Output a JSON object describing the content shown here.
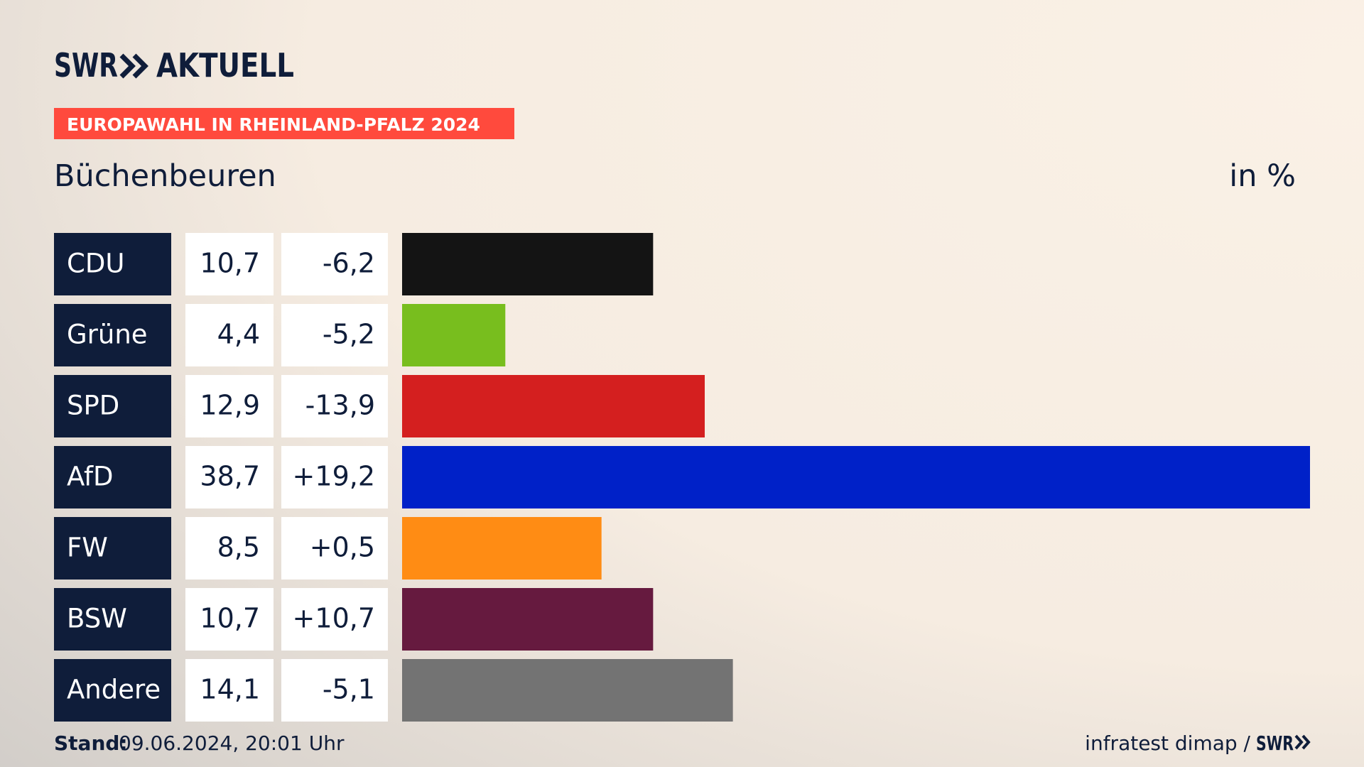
{
  "brand": "SWR",
  "brand_section": "AKTUELL",
  "chart_data": {
    "type": "bar",
    "orientation": "horizontal",
    "title": "EUROPAWAHL IN RHEINLAND-PFALZ 2024",
    "subtitle": "Büchenbeuren",
    "unit_label": "in %",
    "categories": [
      "CDU",
      "Grüne",
      "SPD",
      "AfD",
      "FW",
      "BSW",
      "Andere"
    ],
    "values": [
      10.7,
      4.4,
      12.9,
      38.7,
      8.5,
      10.7,
      14.1
    ],
    "value_labels": [
      "10,7",
      "4,4",
      "12,9",
      "38,7",
      "8,5",
      "10,7",
      "14,1"
    ],
    "changes": [
      "-6,2",
      "-5,2",
      "-13,9",
      "+19,2",
      "+0,5",
      "+10,7",
      "-5,1"
    ],
    "colors": [
      "#141414",
      "#78be1e",
      "#d41f1f",
      "#0021c8",
      "#ff8c14",
      "#661a3f",
      "#737373"
    ]
  },
  "footer": {
    "stand_label": "Stand:",
    "stand_value": "09.06.2024, 20:01 Uhr",
    "source": "infratest dimap /",
    "source_brand": "SWR"
  }
}
